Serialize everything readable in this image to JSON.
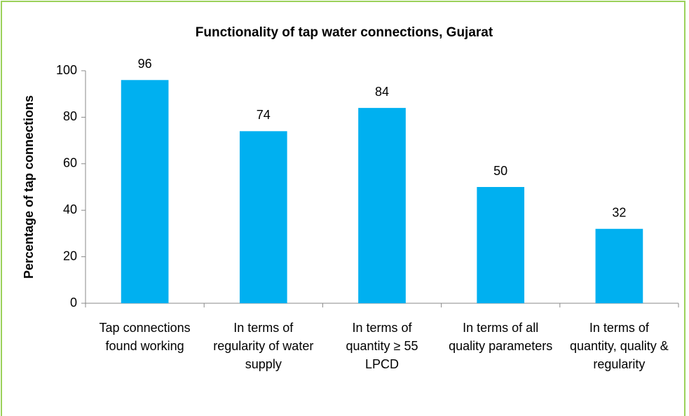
{
  "chart_data": {
    "type": "bar",
    "title": "Functionality of tap water connections, Gujarat",
    "y_label": "Percentage of tap connections",
    "categories": [
      "Tap connections found working",
      "In terms of regularity of water supply",
      "In terms of quantity ≥ 55 LPCD",
      "In terms of all quality parameters",
      "In terms of quantity, quality & regularity"
    ],
    "values": [
      96,
      74,
      84,
      50,
      32
    ],
    "color": "#00b0f0",
    "ylim": [
      0,
      100
    ],
    "yticks": [
      0,
      20,
      40,
      60,
      80,
      100
    ],
    "grid": false
  }
}
